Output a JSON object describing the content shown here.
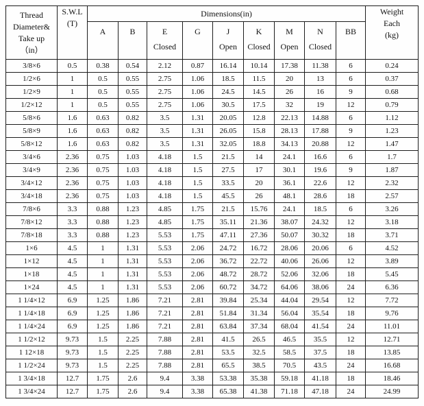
{
  "table": {
    "header": {
      "col_thread": "Thread\nDiameter&\nTake up\n（in）",
      "col_swl": "S.W.L\n(T)",
      "dimensions_title": "Dimensions(in)",
      "dim_cols": [
        {
          "letter": "A",
          "sub": ""
        },
        {
          "letter": "B",
          "sub": ""
        },
        {
          "letter": "E",
          "sub": "Closed"
        },
        {
          "letter": "G",
          "sub": ""
        },
        {
          "letter": "J",
          "sub": "Open"
        },
        {
          "letter": "K",
          "sub": "Closed"
        },
        {
          "letter": "M",
          "sub": "Open"
        },
        {
          "letter": "N",
          "sub": "Closed"
        },
        {
          "letter": "BB",
          "sub": ""
        }
      ],
      "col_weight": "Weight\nEach\n(kg)"
    },
    "rows": [
      [
        "3/8×6",
        "0.5",
        "0.38",
        "0.54",
        "2.12",
        "0.87",
        "16.14",
        "10.14",
        "17.38",
        "11.38",
        "6",
        "0.24"
      ],
      [
        "1/2×6",
        "1",
        "0.5",
        "0.55",
        "2.75",
        "1.06",
        "18.5",
        "11.5",
        "20",
        "13",
        "6",
        "0.37"
      ],
      [
        "1/2×9",
        "1",
        "0.5",
        "0.55",
        "2.75",
        "1.06",
        "24.5",
        "14.5",
        "26",
        "16",
        "9",
        "0.68"
      ],
      [
        "1/2×12",
        "1",
        "0.5",
        "0.55",
        "2.75",
        "1.06",
        "30.5",
        "17.5",
        "32",
        "19",
        "12",
        "0.79"
      ],
      [
        "5/8×6",
        "1.6",
        "0.63",
        "0.82",
        "3.5",
        "1.31",
        "20.05",
        "12.8",
        "22.13",
        "14.88",
        "6",
        "1.12"
      ],
      [
        "5/8×9",
        "1.6",
        "0.63",
        "0.82",
        "3.5",
        "1.31",
        "26.05",
        "15.8",
        "28.13",
        "17.88",
        "9",
        "1.23"
      ],
      [
        "5/8×12",
        "1.6",
        "0.63",
        "0.82",
        "3.5",
        "1.31",
        "32.05",
        "18.8",
        "34.13",
        "20.88",
        "12",
        "1.47"
      ],
      [
        "3/4×6",
        "2.36",
        "0.75",
        "1.03",
        "4.18",
        "1.5",
        "21.5",
        "14",
        "24.1",
        "16.6",
        "6",
        "1.7"
      ],
      [
        "3/4×9",
        "2.36",
        "0.75",
        "1.03",
        "4.18",
        "1.5",
        "27.5",
        "17",
        "30.1",
        "19.6",
        "9",
        "1.87"
      ],
      [
        "3/4×12",
        "2.36",
        "0.75",
        "1.03",
        "4.18",
        "1.5",
        "33.5",
        "20",
        "36.1",
        "22.6",
        "12",
        "2.32"
      ],
      [
        "3/4×18",
        "2.36",
        "0.75",
        "1.03",
        "4.18",
        "1.5",
        "45.5",
        "26",
        "48.1",
        "28.6",
        "18",
        "2.57"
      ],
      [
        "7/8×6",
        "3.3",
        "0.88",
        "1.23",
        "4.85",
        "1.75",
        "21.5",
        "15.76",
        "24.1",
        "18.5",
        "6",
        "3.26"
      ],
      [
        "7/8×12",
        "3.3",
        "0.88",
        "1.23",
        "4.85",
        "1.75",
        "35.11",
        "21.36",
        "38.07",
        "24.32",
        "12",
        "3.18"
      ],
      [
        "7/8×18",
        "3.3",
        "0.88",
        "1.23",
        "5.53",
        "1.75",
        "47.11",
        "27.36",
        "50.07",
        "30.32",
        "18",
        "3.71"
      ],
      [
        "1×6",
        "4.5",
        "1",
        "1.31",
        "5.53",
        "2.06",
        "24.72",
        "16.72",
        "28.06",
        "20.06",
        "6",
        "4.52"
      ],
      [
        "1×12",
        "4.5",
        "1",
        "1.31",
        "5.53",
        "2.06",
        "36.72",
        "22.72",
        "40.06",
        "26.06",
        "12",
        "3.89"
      ],
      [
        "1×18",
        "4.5",
        "1",
        "1.31",
        "5.53",
        "2.06",
        "48.72",
        "28.72",
        "52.06",
        "32.06",
        "18",
        "5.45"
      ],
      [
        "1×24",
        "4.5",
        "1",
        "1.31",
        "5.53",
        "2.06",
        "60.72",
        "34.72",
        "64.06",
        "38.06",
        "24",
        "6.36"
      ],
      [
        "1 1/4×12",
        "6.9",
        "1.25",
        "1.86",
        "7.21",
        "2.81",
        "39.84",
        "25.34",
        "44.04",
        "29.54",
        "12",
        "7.72"
      ],
      [
        "1 1/4×18",
        "6.9",
        "1.25",
        "1.86",
        "7.21",
        "2.81",
        "51.84",
        "31.34",
        "56.04",
        "35.54",
        "18",
        "9.76"
      ],
      [
        "1 1/4×24",
        "6.9",
        "1.25",
        "1.86",
        "7.21",
        "2.81",
        "63.84",
        "37.34",
        "68.04",
        "41.54",
        "24",
        "11.01"
      ],
      [
        "1 1/2×12",
        "9.73",
        "1.5",
        "2.25",
        "7.88",
        "2.81",
        "41.5",
        "26.5",
        "46.5",
        "35.5",
        "12",
        "12.71"
      ],
      [
        "1 12×18",
        "9.73",
        "1.5",
        "2.25",
        "7.88",
        "2.81",
        "53.5",
        "32.5",
        "58.5",
        "37.5",
        "18",
        "13.85"
      ],
      [
        "1 1/2×24",
        "9.73",
        "1.5",
        "2.25",
        "7.88",
        "2.81",
        "65.5",
        "38.5",
        "70.5",
        "43.5",
        "24",
        "16.68"
      ],
      [
        "1 3/4×18",
        "12.7",
        "1.75",
        "2.6",
        "9.4",
        "3.38",
        "53.38",
        "35.38",
        "59.18",
        "41.18",
        "18",
        "18.46"
      ],
      [
        "1 3/4×24",
        "12.7",
        "1.75",
        "2.6",
        "9.4",
        "3.38",
        "65.38",
        "41.38",
        "71.18",
        "47.18",
        "24",
        "24.99"
      ]
    ]
  }
}
